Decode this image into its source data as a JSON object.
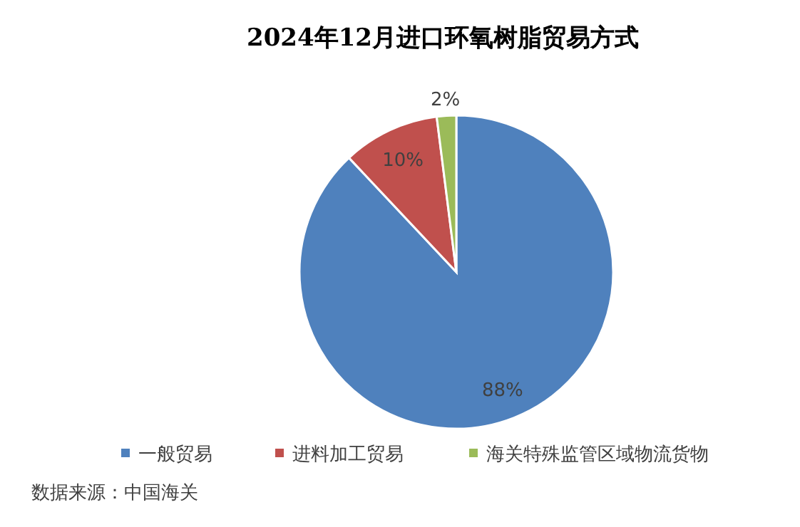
{
  "chart_data": {
    "type": "pie",
    "title": "2024年12月进口环氧树脂贸易方式",
    "categories": [
      "一般贸易",
      "进料加工贸易",
      "海关特殊监管区域物流货物"
    ],
    "values": [
      88,
      10,
      2
    ],
    "colors": [
      "#4f81bd",
      "#c0504d",
      "#9bbb59"
    ],
    "value_labels": [
      "88%",
      "10%",
      "2%"
    ],
    "legend": "bottom",
    "annotations": [
      "数据来源：中国海关"
    ]
  }
}
